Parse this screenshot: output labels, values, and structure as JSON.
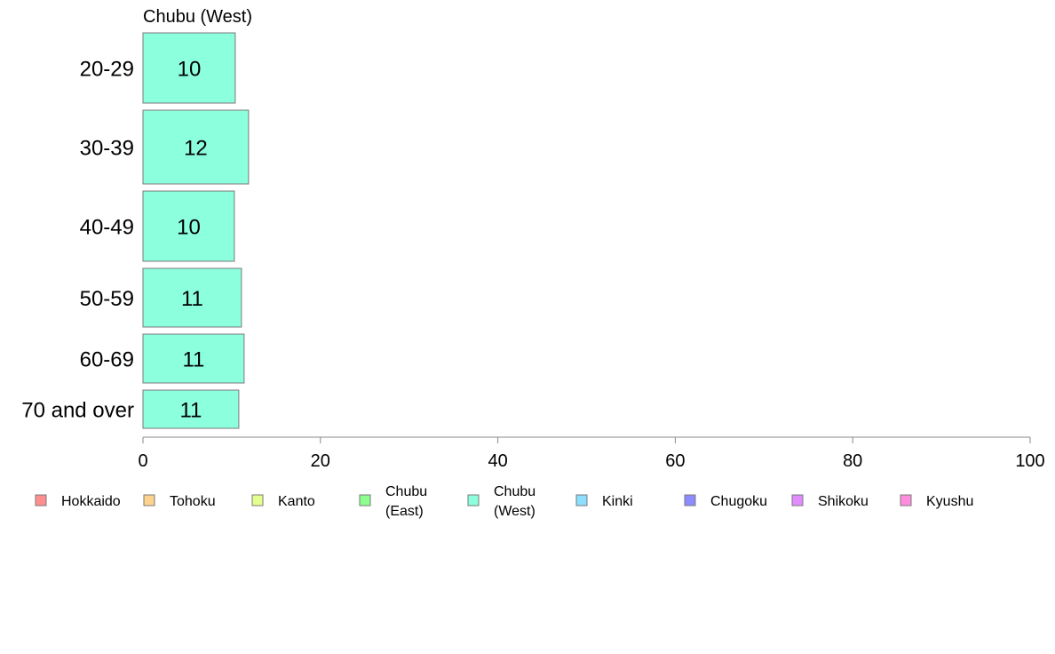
{
  "chart_data": {
    "type": "bar",
    "orientation": "horizontal",
    "title": "Chubu (West)",
    "categories": [
      "20-29",
      "30-39",
      "40-49",
      "50-59",
      "60-69",
      "70 and over"
    ],
    "series": [
      {
        "name": "Chubu (West)",
        "values": [
          10.4,
          11.9,
          10.3,
          11.1,
          11.4,
          10.8
        ],
        "labels": [
          "10",
          "12",
          "10",
          "11",
          "11",
          "11"
        ],
        "color": "#8cffdd"
      }
    ],
    "xlim": [
      0,
      100
    ],
    "xticks": [
      "0",
      "20",
      "40",
      "60",
      "80",
      "100"
    ],
    "xlabel": "",
    "ylabel": "",
    "grid": false,
    "legend_position": "bottom"
  },
  "legend": {
    "items": [
      {
        "label_lines": [
          "Hokkaido"
        ],
        "color": "#ff8f8f"
      },
      {
        "label_lines": [
          "Tohoku"
        ],
        "color": "#ffd38f"
      },
      {
        "label_lines": [
          "Kanto"
        ],
        "color": "#e5ff8f"
      },
      {
        "label_lines": [
          "Chubu",
          "(East)"
        ],
        "color": "#8cff8c"
      },
      {
        "label_lines": [
          "Chubu",
          "(West)"
        ],
        "color": "#8cffdd"
      },
      {
        "label_lines": [
          "Kinki"
        ],
        "color": "#8cdfff"
      },
      {
        "label_lines": [
          "Chugoku"
        ],
        "color": "#8c8cff"
      },
      {
        "label_lines": [
          "Shikoku"
        ],
        "color": "#e08cff"
      },
      {
        "label_lines": [
          "Kyushu"
        ],
        "color": "#ff8cdf"
      }
    ]
  },
  "colors": {
    "bar_stroke": "#7a7a7a",
    "axis": "#888888"
  }
}
